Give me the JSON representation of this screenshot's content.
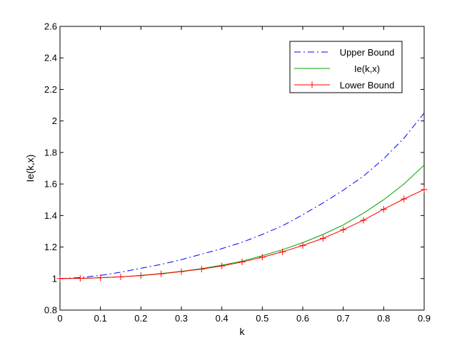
{
  "chart_data": {
    "type": "line",
    "title": "",
    "xlabel": "k",
    "ylabel": "Ie(k,x)",
    "xlim": [
      0,
      0.9
    ],
    "ylim": [
      0.8,
      2.6
    ],
    "grid": false,
    "legend_position": "top-right",
    "xticks": [
      0,
      0.1,
      0.2,
      0.3,
      0.4,
      0.5,
      0.6,
      0.7,
      0.8,
      0.9
    ],
    "xtick_labels": [
      "0",
      "0.1",
      "0.2",
      "0.3",
      "0.4",
      "0.5",
      "0.6",
      "0.7",
      "0.8",
      "0.9"
    ],
    "yticks": [
      0.8,
      1.0,
      1.2,
      1.4,
      1.6,
      1.8,
      2.0,
      2.2,
      2.4,
      2.6
    ],
    "ytick_labels": [
      "0.8",
      "1",
      "1.2",
      "1.4",
      "1.6",
      "1.8",
      "2",
      "2.2",
      "2.4",
      "2.6"
    ],
    "x": [
      0,
      0.05,
      0.1,
      0.15,
      0.2,
      0.25,
      0.3,
      0.35,
      0.4,
      0.45,
      0.5,
      0.55,
      0.6,
      0.65,
      0.7,
      0.75,
      0.8,
      0.85,
      0.9
    ],
    "series": [
      {
        "name": "Upper Bound",
        "color": "#0000ff",
        "style": "dash-dot",
        "marker": "none",
        "values": [
          1.0,
          1.006,
          1.02,
          1.04,
          1.065,
          1.09,
          1.12,
          1.155,
          1.19,
          1.23,
          1.28,
          1.335,
          1.405,
          1.48,
          1.56,
          1.65,
          1.76,
          1.89,
          2.05
        ]
      },
      {
        "name": "Ie(k,x)",
        "color": "#00a000",
        "style": "solid",
        "marker": "none",
        "values": [
          1.0,
          1.001,
          1.005,
          1.011,
          1.02,
          1.032,
          1.046,
          1.063,
          1.085,
          1.11,
          1.145,
          1.183,
          1.228,
          1.28,
          1.34,
          1.415,
          1.5,
          1.6,
          1.72
        ]
      },
      {
        "name": "Lower Bound",
        "color": "#ff0000",
        "style": "solid",
        "marker": "plus",
        "values": [
          1.0,
          1.001,
          1.005,
          1.011,
          1.019,
          1.03,
          1.044,
          1.06,
          1.08,
          1.105,
          1.135,
          1.17,
          1.21,
          1.255,
          1.31,
          1.37,
          1.44,
          1.505,
          1.565
        ]
      }
    ]
  }
}
